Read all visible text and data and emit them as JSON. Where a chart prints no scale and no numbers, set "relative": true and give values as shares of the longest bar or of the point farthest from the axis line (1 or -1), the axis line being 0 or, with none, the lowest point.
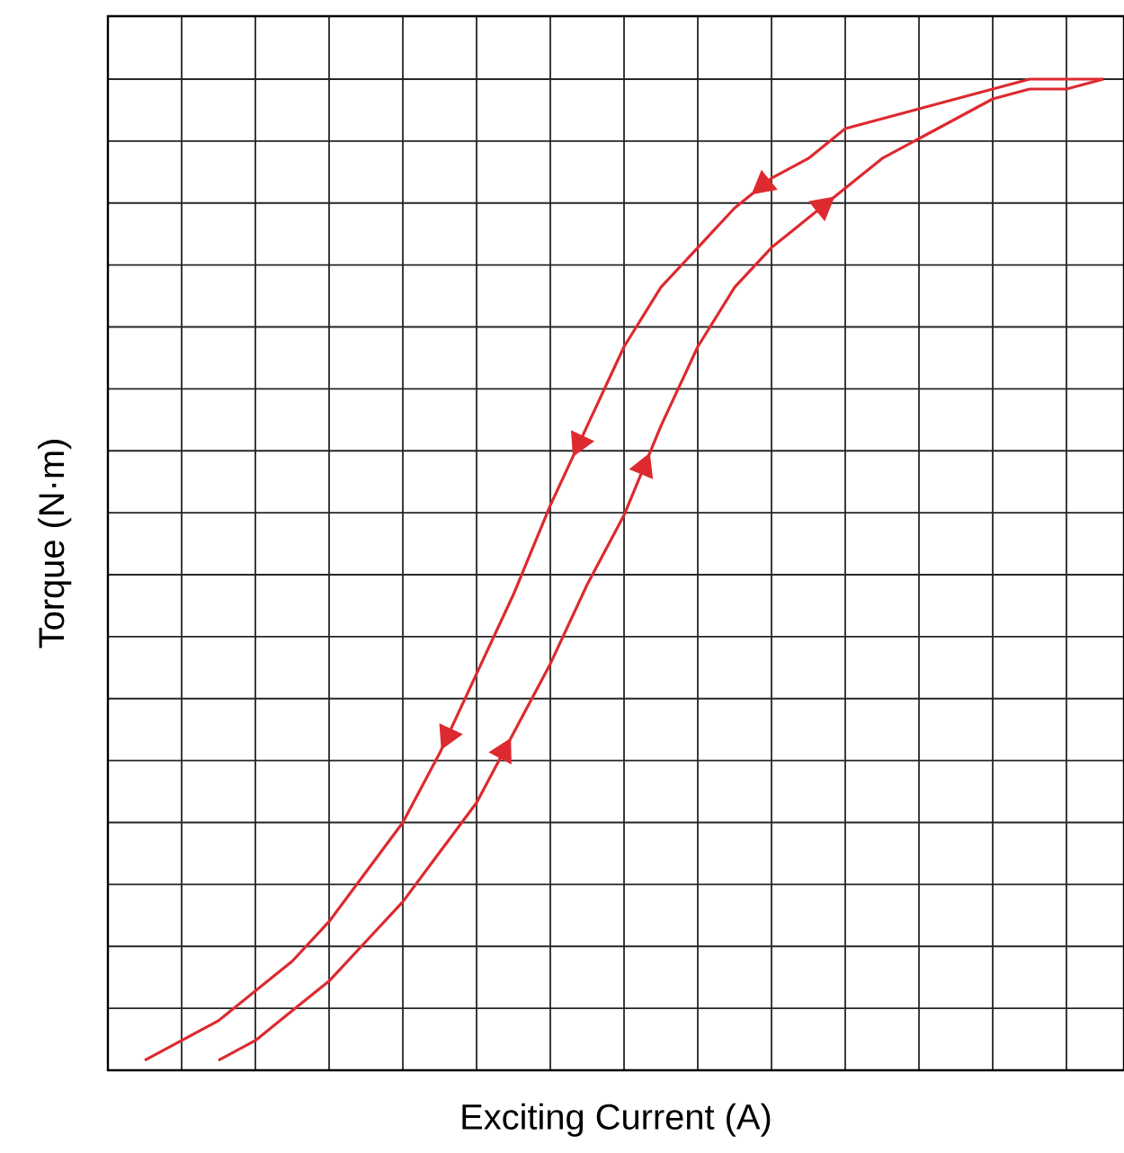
{
  "chart_data": {
    "type": "line",
    "xlabel": "Exciting Current (A)",
    "ylabel": "Torque (N·m)",
    "relative": true,
    "grid": true,
    "tick_labels": false,
    "marker": "none",
    "line_style": "solid",
    "categories": [
      null,
      null,
      null,
      null,
      null,
      null,
      null,
      null,
      null,
      null,
      null,
      null,
      null,
      null,
      null,
      null,
      null,
      null,
      null,
      null,
      null,
      null,
      null,
      null,
      null,
      null,
      null,
      null
    ],
    "series": [
      {
        "color": "#dd2a30",
        "values": [
          null,
          0.01,
          0.03,
          0.05,
          0.08,
          0.11,
          0.15,
          0.2,
          0.25,
          0.32,
          0.4,
          0.48,
          0.57,
          0.65,
          0.73,
          0.79,
          0.83,
          0.87,
          0.9,
          0.92,
          0.95,
          0.96,
          0.97,
          0.98,
          0.99,
          1.0,
          1.0,
          1.0
        ]
      },
      {
        "color": "#dd2a30",
        "values": [
          null,
          null,
          null,
          0.01,
          0.03,
          0.06,
          0.09,
          0.13,
          0.17,
          0.22,
          0.27,
          0.34,
          0.41,
          0.49,
          0.56,
          0.65,
          0.73,
          0.79,
          0.83,
          0.86,
          0.89,
          0.92,
          0.94,
          0.96,
          0.98,
          0.99,
          0.99,
          1.0
        ]
      }
    ]
  }
}
